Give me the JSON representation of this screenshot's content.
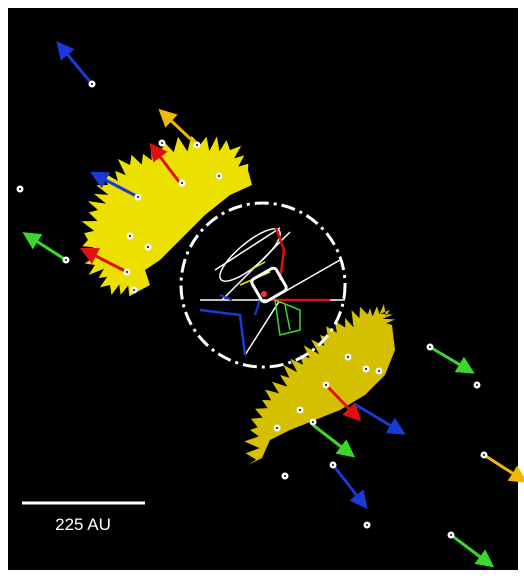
{
  "scale_bar": {
    "label": "225 AU"
  }
}
